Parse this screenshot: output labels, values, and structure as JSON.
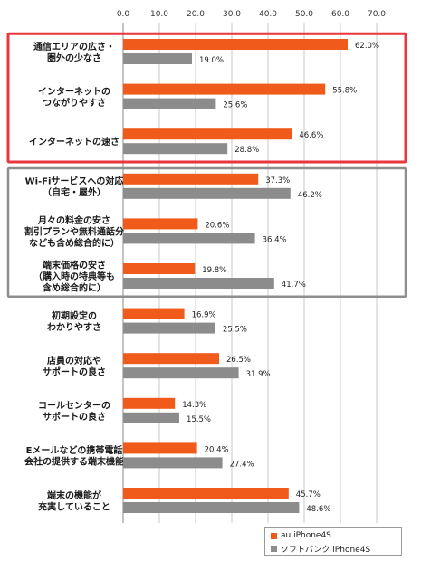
{
  "chart_data": {
    "type": "bar",
    "orientation": "horizontal",
    "xlim": [
      0,
      70
    ],
    "xticks": [
      "0.0",
      "10.0",
      "20.0",
      "30.0",
      "40.0",
      "50.0",
      "60.0",
      "70.0"
    ],
    "grid": true,
    "legend_position": "bottom-right",
    "categories": [
      [
        "通信エリアの広さ・",
        "圏外の少なさ"
      ],
      [
        "インターネットの",
        "つながりやすさ"
      ],
      [
        "インターネットの速さ"
      ],
      [
        "Wi-Fiサービスへの対応",
        "（自宅・屋外）"
      ],
      [
        "月々の料金の安さ",
        "割引プランや無料通話分",
        "なども含め総合的に）"
      ],
      [
        "端末価格の安さ",
        "（購入時の特典等も",
        "含め総合的に）"
      ],
      [
        "初期設定の",
        "わかりやすさ"
      ],
      [
        "店員の対応や",
        "サポートの良さ"
      ],
      [
        "コールセンターの",
        "サポートの良さ"
      ],
      [
        "Eメールなどの携帯電話",
        "会社の提供する端末機能"
      ],
      [
        "端末の機能が",
        "充実していること"
      ]
    ],
    "series": [
      {
        "name": "au iPhone4S",
        "color": "#f05a1a",
        "values": [
          62.0,
          55.8,
          46.6,
          37.3,
          20.6,
          19.8,
          16.9,
          26.5,
          14.3,
          20.4,
          45.7
        ],
        "labels": [
          "62.0%",
          "55.8%",
          "46.6%",
          "37.3%",
          "20.6%",
          "19.8%",
          "16.9%",
          "26.5%",
          "14.3%",
          "20.4%",
          "45.7%"
        ]
      },
      {
        "name": "ソフトバンク iPhone4S",
        "color": "#8c8c8c",
        "values": [
          19.0,
          25.6,
          28.8,
          46.2,
          36.4,
          41.7,
          25.5,
          31.9,
          15.5,
          27.4,
          48.6
        ],
        "labels": [
          "19.0%",
          "25.6%",
          "28.8%",
          "46.2%",
          "36.4%",
          "41.7%",
          "25.5%",
          "31.9%",
          "15.5%",
          "27.4%",
          "48.6%"
        ]
      }
    ],
    "highlight_groups": [
      {
        "categories": [
          0,
          1,
          2
        ],
        "color": "#e8373f"
      },
      {
        "categories": [
          3,
          4,
          5
        ],
        "color": "#8e8e8e"
      }
    ]
  }
}
